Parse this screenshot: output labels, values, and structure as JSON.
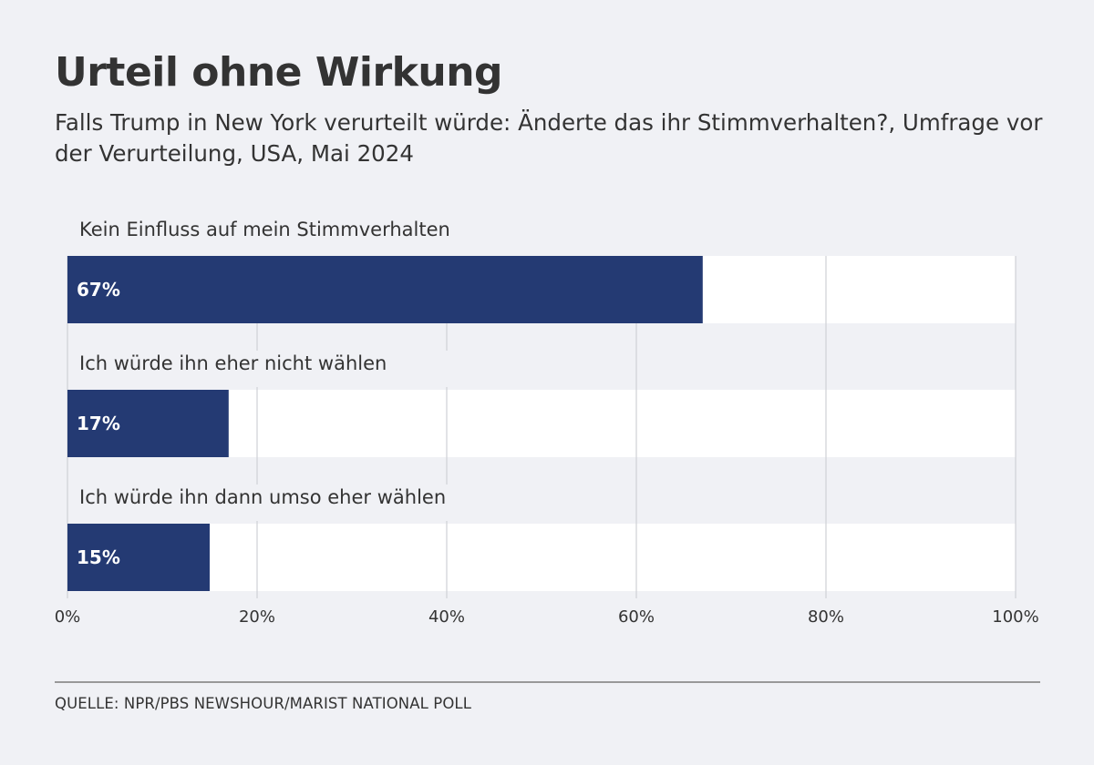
{
  "header": {
    "title": "Urteil ohne Wirkung",
    "subtitle": "Falls Trump in New York verurteilt würde: Änderte das ihr Stimmverhalten?, Umfrage vor der Verurteilung, USA, Mai 2024"
  },
  "footer": {
    "source": "QUELLE: NPR/PBS NEWSHOUR/MARIST NATIONAL POLL"
  },
  "colors": {
    "bar": "#243a73",
    "track": "#ffffff",
    "background": "#f0f1f5",
    "grid": "#cfd0d6"
  },
  "chart_data": {
    "type": "bar",
    "orientation": "horizontal",
    "title": "Urteil ohne Wirkung",
    "subtitle": "Falls Trump in New York verurteilt würde: Änderte das ihr Stimmverhalten?, Umfrage vor der Verurteilung, USA, Mai 2024",
    "categories": [
      "Kein Einfluss auf mein Stimmverhalten",
      "Ich würde ihn eher nicht wählen",
      "Ich würde ihn dann umso eher wählen"
    ],
    "values": [
      67,
      17,
      15
    ],
    "value_labels": [
      "67%",
      "17%",
      "15%"
    ],
    "unit": "%",
    "xlim": [
      0,
      100
    ],
    "xticks": [
      0,
      20,
      40,
      60,
      80,
      100
    ],
    "xtick_labels": [
      "0%",
      "20%",
      "40%",
      "60%",
      "80%",
      "100%"
    ],
    "xlabel": "",
    "ylabel": "",
    "grid": true,
    "legend": "none",
    "source": "QUELLE: NPR/PBS NEWSHOUR/MARIST NATIONAL POLL"
  }
}
